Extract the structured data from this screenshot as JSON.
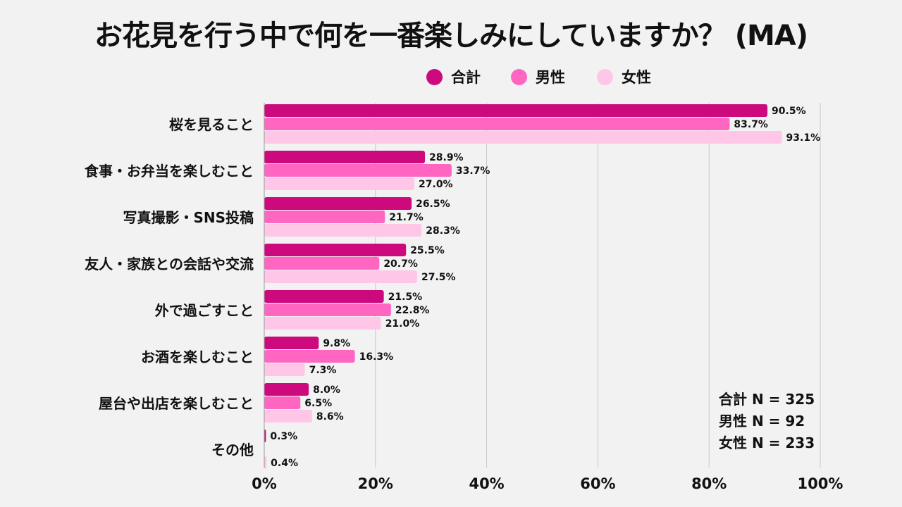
{
  "chart_data": {
    "type": "bar",
    "orientation": "horizontal",
    "title": "お花見を行う中で何を一番楽しみにしていますか？ (MA)",
    "categories": [
      "桜を見ること",
      "食事・お弁当を楽しむこと",
      "写真撮影・SNS投稿",
      "友人・家族との会話や交流",
      "外で過ごすこと",
      "お酒を楽しむこと",
      "屋台や出店を楽しむこと",
      "その他"
    ],
    "series": [
      {
        "name": "合計",
        "color": "#cc0a7e",
        "values": [
          90.5,
          28.9,
          26.5,
          25.5,
          21.5,
          9.8,
          8.0,
          0.3
        ],
        "labels": [
          "90.5%",
          "28.9%",
          "26.5%",
          "25.5%",
          "21.5%",
          "9.8%",
          "8.0%",
          "0.3%"
        ]
      },
      {
        "name": "男性",
        "color": "#ff66c2",
        "values": [
          83.7,
          33.7,
          21.7,
          20.7,
          22.8,
          16.3,
          6.5,
          0.0
        ],
        "labels": [
          "83.7%",
          "33.7%",
          "21.7%",
          "20.7%",
          "22.8%",
          "16.3%",
          "6.5%",
          null
        ]
      },
      {
        "name": "女性",
        "color": "#ffc6e8",
        "values": [
          93.1,
          27.0,
          28.3,
          27.5,
          21.0,
          7.3,
          8.6,
          0.4
        ],
        "labels": [
          "93.1%",
          "27.0%",
          "28.3%",
          "27.5%",
          "21.0%",
          "7.3%",
          "8.6%",
          "0.4%"
        ]
      }
    ],
    "xlim": [
      0,
      100
    ],
    "xticks": [
      0,
      20,
      40,
      60,
      80,
      100
    ],
    "xtick_labels": [
      "0%",
      "20%",
      "40%",
      "60%",
      "80%",
      "100%"
    ],
    "grid": true,
    "legend_position": "top-center"
  },
  "legend": [
    {
      "label": "合計",
      "color": "#cc0a7e"
    },
    {
      "label": "男性",
      "color": "#ff66c2"
    },
    {
      "label": "女性",
      "color": "#ffc6e8"
    }
  ],
  "notes": [
    "合計 N = 325",
    "男性 N = 92",
    "女性 N = 233"
  ]
}
